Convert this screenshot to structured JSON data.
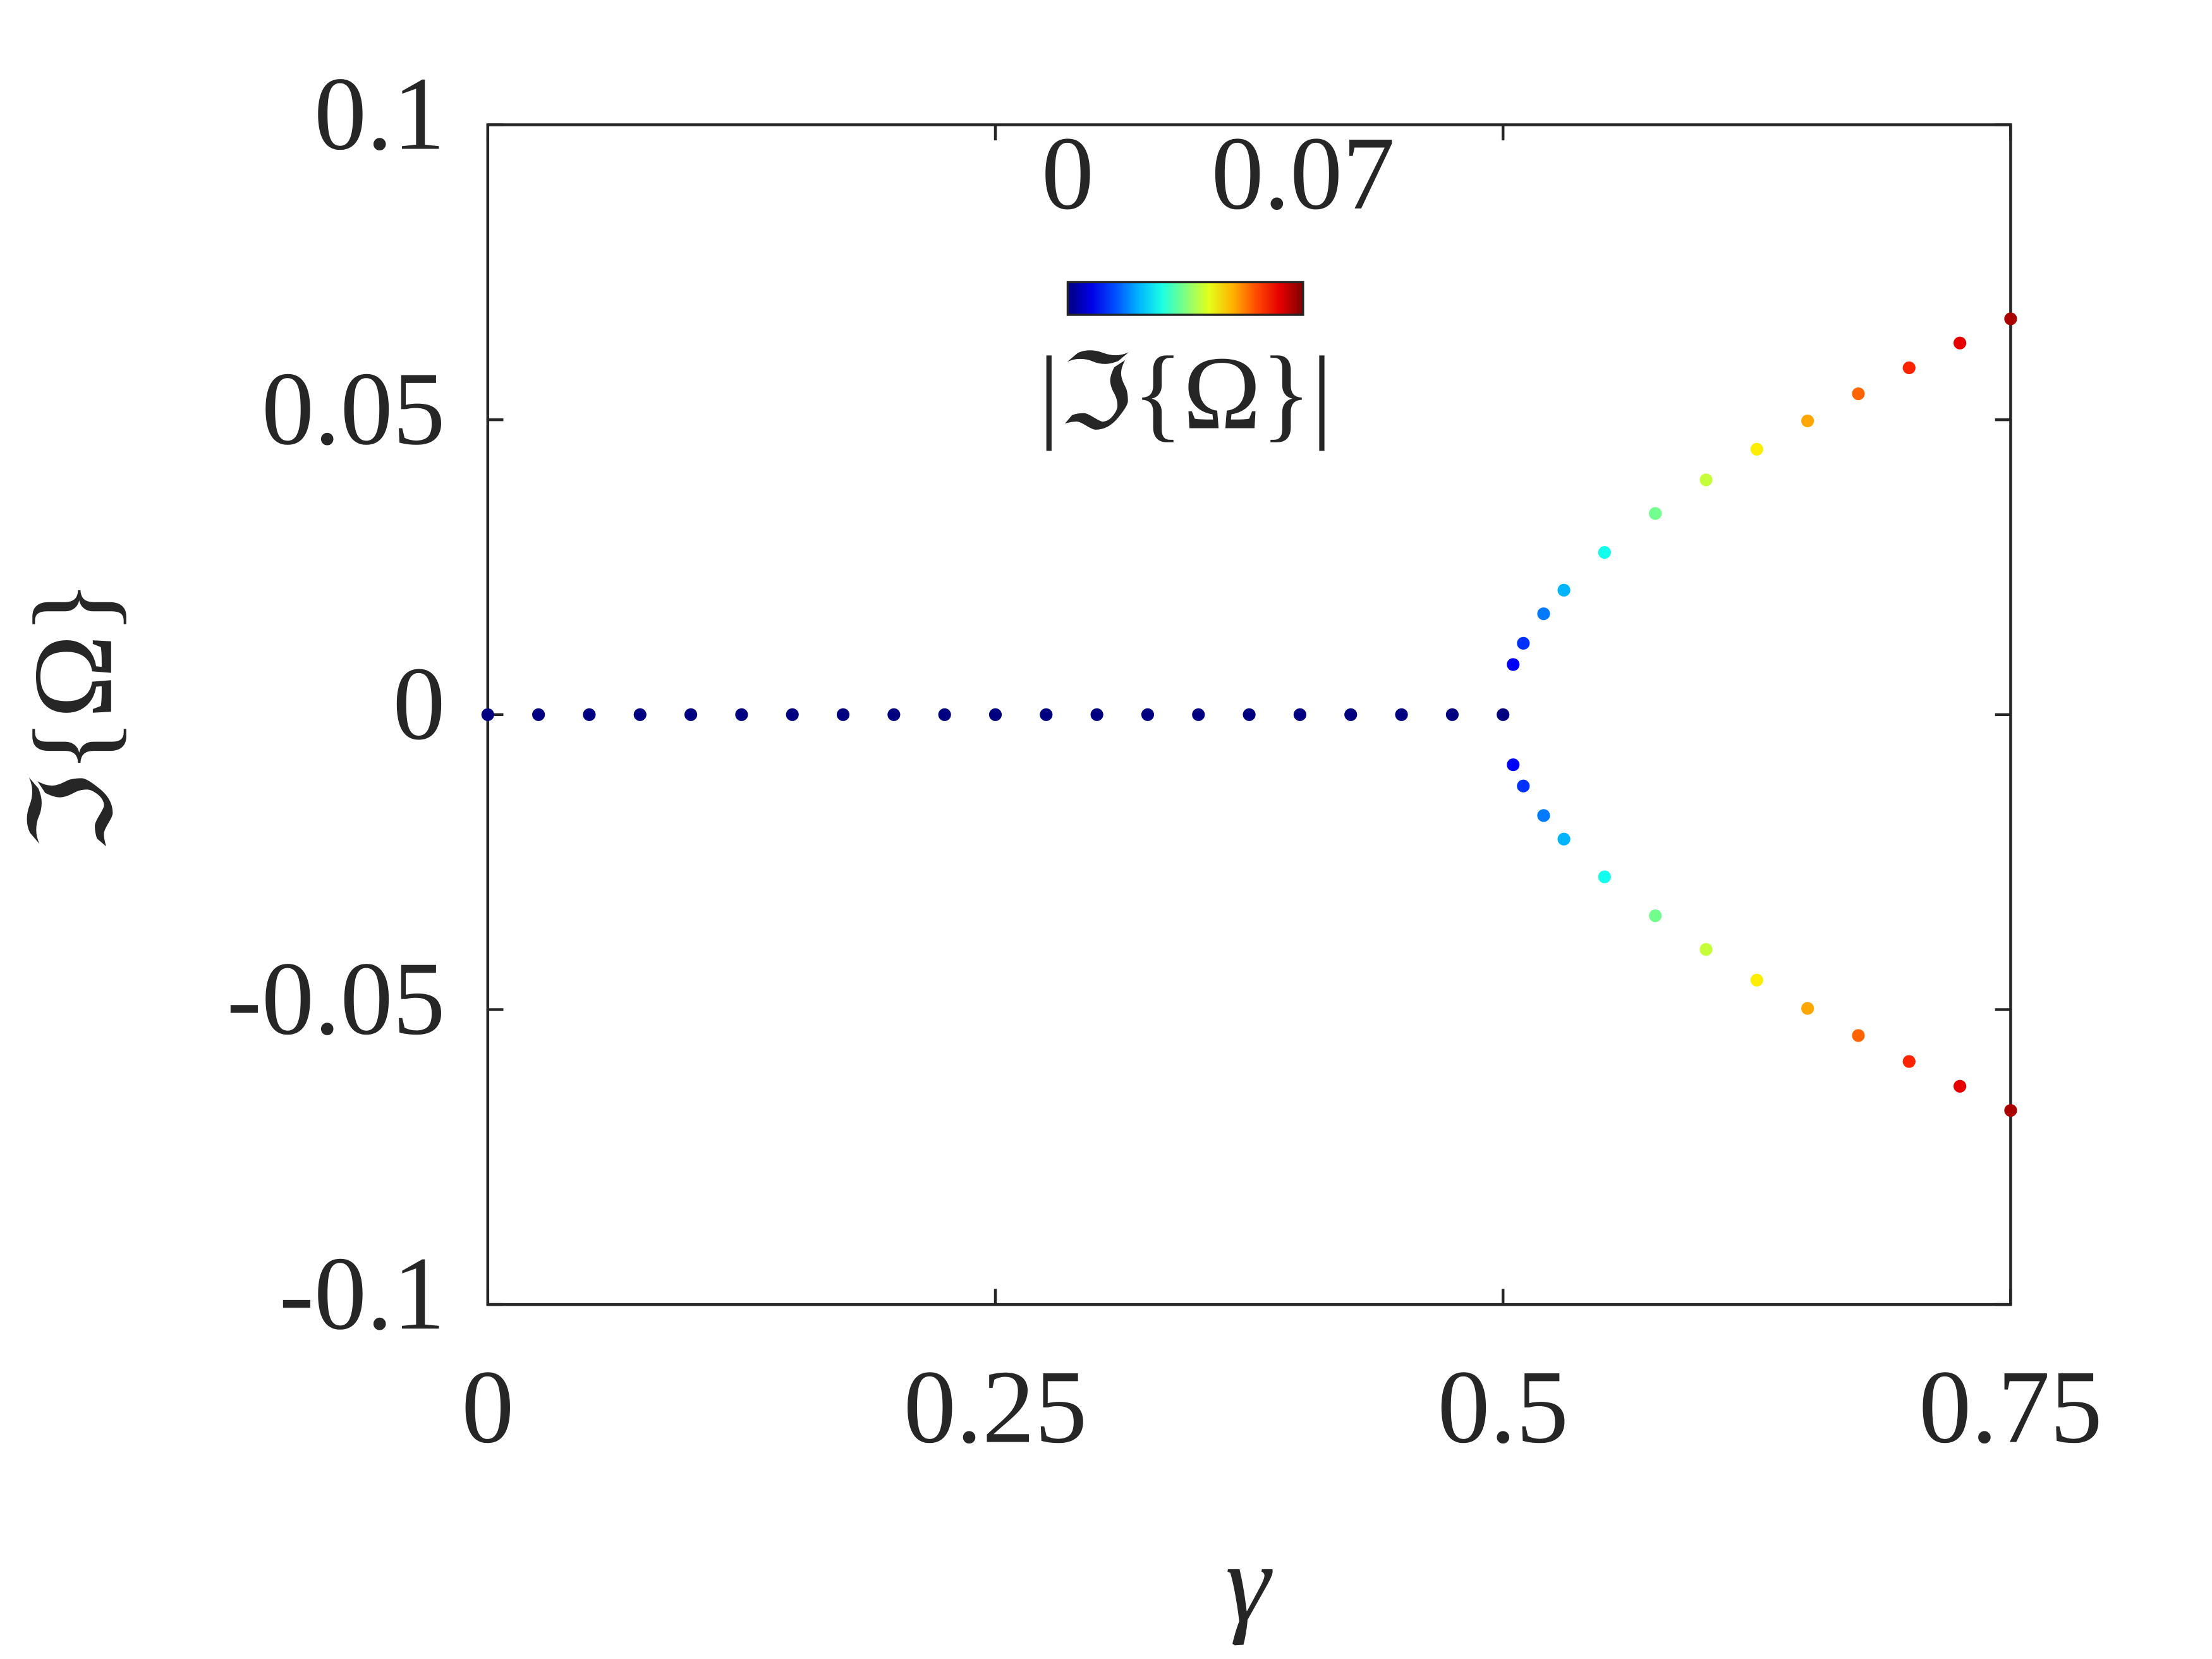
{
  "chart_data": {
    "type": "scatter",
    "xlabel": "γ",
    "ylabel": "ℑ{Ω}",
    "xlim": [
      0,
      0.75
    ],
    "xticks": [
      0,
      0.25,
      0.5,
      0.75
    ],
    "ylim": [
      -0.1,
      0.1
    ],
    "yticks": [
      -0.1,
      -0.05,
      0,
      0.05,
      0.1
    ],
    "colormap": "jet",
    "clim": [
      0,
      0.07
    ],
    "cticks": [
      0,
      0.07
    ],
    "clabel": "|ℑ{Ω}|",
    "series": [
      {
        "x": [
          0,
          0.025,
          0.05,
          0.075,
          0.1,
          0.125,
          0.15,
          0.175,
          0.2,
          0.225,
          0.25,
          0.275,
          0.3,
          0.325,
          0.35,
          0.375,
          0.4,
          0.425,
          0.45,
          0.475,
          0.5
        ],
        "values": [
          0,
          0,
          0,
          0,
          0,
          0,
          0,
          0,
          0,
          0,
          0,
          0,
          0,
          0,
          0,
          0,
          0,
          0,
          0,
          0,
          0
        ]
      },
      {
        "x": [
          0.505,
          0.51,
          0.52,
          0.53,
          0.55,
          0.575,
          0.6,
          0.625,
          0.65,
          0.675,
          0.7,
          0.725,
          0.75
        ],
        "values": [
          0.0085,
          0.0121,
          0.0171,
          0.0211,
          0.0275,
          0.0341,
          0.0398,
          0.045,
          0.0498,
          0.0544,
          0.0588,
          0.063,
          0.0671
        ]
      },
      {
        "x": [
          0.505,
          0.51,
          0.52,
          0.53,
          0.55,
          0.575,
          0.6,
          0.625,
          0.65,
          0.675,
          0.7,
          0.725,
          0.75
        ],
        "values": [
          -0.0085,
          -0.0121,
          -0.0171,
          -0.0211,
          -0.0275,
          -0.0341,
          -0.0398,
          -0.045,
          -0.0498,
          -0.0544,
          -0.0588,
          -0.063,
          -0.0671
        ]
      }
    ]
  }
}
